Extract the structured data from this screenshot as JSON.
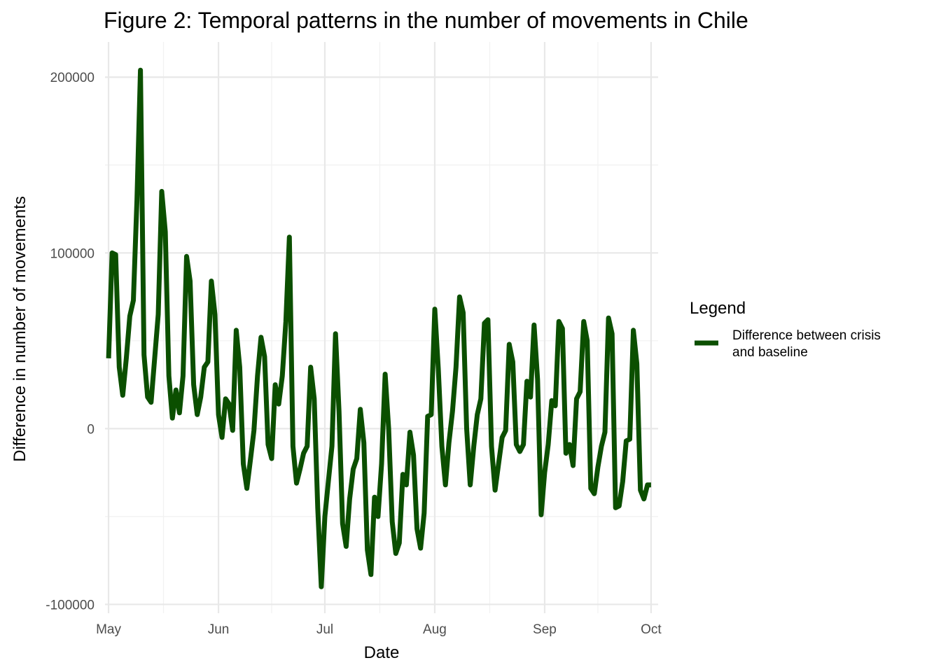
{
  "chart_data": {
    "type": "line",
    "title": "Figure 2: Temporal patterns in the number of movements in Chile",
    "xlabel": "Date",
    "ylabel": "Difference in number of movements",
    "xlim": [
      "2020-04-30",
      "2020-10-03"
    ],
    "ylim": [
      -105000,
      220000
    ],
    "x_ticks": [
      {
        "date": "2020-05-01",
        "label": "May"
      },
      {
        "date": "2020-06-01",
        "label": "Jun"
      },
      {
        "date": "2020-07-01",
        "label": "Jul"
      },
      {
        "date": "2020-08-01",
        "label": "Aug"
      },
      {
        "date": "2020-09-01",
        "label": "Sep"
      },
      {
        "date": "2020-10-01",
        "label": "Oct"
      }
    ],
    "y_ticks": [
      {
        "value": -100000,
        "label": "-100000"
      },
      {
        "value": 0,
        "label": "0"
      },
      {
        "value": 100000,
        "label": "100000"
      },
      {
        "value": 200000,
        "label": "200000"
      }
    ],
    "grid": true,
    "legend": {
      "title": "Legend",
      "position": "right"
    },
    "series": [
      {
        "name": "Difference between crisis\nand baseline",
        "color": "#0b4f00",
        "points": [
          [
            "2020-05-01",
            40000
          ],
          [
            "2020-05-02",
            100000
          ],
          [
            "2020-05-03",
            99000
          ],
          [
            "2020-05-04",
            35000
          ],
          [
            "2020-05-05",
            19000
          ],
          [
            "2020-05-06",
            40000
          ],
          [
            "2020-05-07",
            64000
          ],
          [
            "2020-05-08",
            73000
          ],
          [
            "2020-05-09",
            130000
          ],
          [
            "2020-05-10",
            204000
          ],
          [
            "2020-05-11",
            42000
          ],
          [
            "2020-05-12",
            18000
          ],
          [
            "2020-05-13",
            15000
          ],
          [
            "2020-05-14",
            40000
          ],
          [
            "2020-05-15",
            65000
          ],
          [
            "2020-05-16",
            135000
          ],
          [
            "2020-05-17",
            112000
          ],
          [
            "2020-05-18",
            30000
          ],
          [
            "2020-05-19",
            6000
          ],
          [
            "2020-05-20",
            22000
          ],
          [
            "2020-05-21",
            9000
          ],
          [
            "2020-05-22",
            30000
          ],
          [
            "2020-05-23",
            98000
          ],
          [
            "2020-05-24",
            84000
          ],
          [
            "2020-05-25",
            25000
          ],
          [
            "2020-05-26",
            8000
          ],
          [
            "2020-05-27",
            18000
          ],
          [
            "2020-05-28",
            35000
          ],
          [
            "2020-05-29",
            38000
          ],
          [
            "2020-05-30",
            84000
          ],
          [
            "2020-05-31",
            65000
          ],
          [
            "2020-06-01",
            8000
          ],
          [
            "2020-06-02",
            -5000
          ],
          [
            "2020-06-03",
            17000
          ],
          [
            "2020-06-04",
            14000
          ],
          [
            "2020-06-05",
            -1000
          ],
          [
            "2020-06-06",
            56000
          ],
          [
            "2020-06-07",
            35000
          ],
          [
            "2020-06-08",
            -20000
          ],
          [
            "2020-06-09",
            -34000
          ],
          [
            "2020-06-10",
            -18000
          ],
          [
            "2020-06-11",
            -1000
          ],
          [
            "2020-06-12",
            30000
          ],
          [
            "2020-06-13",
            52000
          ],
          [
            "2020-06-14",
            41000
          ],
          [
            "2020-06-15",
            -9000
          ],
          [
            "2020-06-16",
            -17000
          ],
          [
            "2020-06-17",
            25000
          ],
          [
            "2020-06-18",
            14000
          ],
          [
            "2020-06-19",
            30000
          ],
          [
            "2020-06-20",
            61000
          ],
          [
            "2020-06-21",
            109000
          ],
          [
            "2020-06-22",
            -10000
          ],
          [
            "2020-06-23",
            -31000
          ],
          [
            "2020-06-24",
            -23000
          ],
          [
            "2020-06-25",
            -14000
          ],
          [
            "2020-06-26",
            -10000
          ],
          [
            "2020-06-27",
            35000
          ],
          [
            "2020-06-28",
            17000
          ],
          [
            "2020-06-29",
            -45000
          ],
          [
            "2020-06-30",
            -90000
          ],
          [
            "2020-07-01",
            -50000
          ],
          [
            "2020-07-02",
            -30000
          ],
          [
            "2020-07-03",
            -10000
          ],
          [
            "2020-07-04",
            54000
          ],
          [
            "2020-07-05",
            10000
          ],
          [
            "2020-07-06",
            -54000
          ],
          [
            "2020-07-07",
            -67000
          ],
          [
            "2020-07-08",
            -40000
          ],
          [
            "2020-07-09",
            -23000
          ],
          [
            "2020-07-10",
            -17000
          ],
          [
            "2020-07-11",
            11000
          ],
          [
            "2020-07-12",
            -8000
          ],
          [
            "2020-07-13",
            -69000
          ],
          [
            "2020-07-14",
            -83000
          ],
          [
            "2020-07-15",
            -39000
          ],
          [
            "2020-07-16",
            -50000
          ],
          [
            "2020-07-17",
            -20000
          ],
          [
            "2020-07-18",
            31000
          ],
          [
            "2020-07-19",
            0
          ],
          [
            "2020-07-20",
            -53000
          ],
          [
            "2020-07-21",
            -71000
          ],
          [
            "2020-07-22",
            -65000
          ],
          [
            "2020-07-23",
            -26000
          ],
          [
            "2020-07-24",
            -32000
          ],
          [
            "2020-07-25",
            -2000
          ],
          [
            "2020-07-26",
            -15000
          ],
          [
            "2020-07-27",
            -57000
          ],
          [
            "2020-07-28",
            -68000
          ],
          [
            "2020-07-29",
            -48000
          ],
          [
            "2020-07-30",
            7000
          ],
          [
            "2020-07-31",
            8000
          ],
          [
            "2020-08-01",
            68000
          ],
          [
            "2020-08-02",
            34000
          ],
          [
            "2020-08-03",
            -10000
          ],
          [
            "2020-08-04",
            -32000
          ],
          [
            "2020-08-05",
            -8000
          ],
          [
            "2020-08-06",
            10000
          ],
          [
            "2020-08-07",
            35000
          ],
          [
            "2020-08-08",
            75000
          ],
          [
            "2020-08-09",
            66000
          ],
          [
            "2020-08-10",
            0
          ],
          [
            "2020-08-11",
            -32000
          ],
          [
            "2020-08-12",
            -10000
          ],
          [
            "2020-08-13",
            8000
          ],
          [
            "2020-08-14",
            17000
          ],
          [
            "2020-08-15",
            60000
          ],
          [
            "2020-08-16",
            62000
          ],
          [
            "2020-08-17",
            -10000
          ],
          [
            "2020-08-18",
            -35000
          ],
          [
            "2020-08-19",
            -20000
          ],
          [
            "2020-08-20",
            -5000
          ],
          [
            "2020-08-21",
            -1000
          ],
          [
            "2020-08-22",
            48000
          ],
          [
            "2020-08-23",
            38000
          ],
          [
            "2020-08-24",
            -9000
          ],
          [
            "2020-08-25",
            -13000
          ],
          [
            "2020-08-26",
            -9000
          ],
          [
            "2020-08-27",
            27000
          ],
          [
            "2020-08-28",
            18000
          ],
          [
            "2020-08-29",
            59000
          ],
          [
            "2020-08-30",
            28000
          ],
          [
            "2020-08-31",
            -49000
          ],
          [
            "2020-09-01",
            -25000
          ],
          [
            "2020-09-02",
            -9000
          ],
          [
            "2020-09-03",
            16000
          ],
          [
            "2020-09-04",
            13000
          ],
          [
            "2020-09-05",
            61000
          ],
          [
            "2020-09-06",
            57000
          ],
          [
            "2020-09-07",
            -14000
          ],
          [
            "2020-09-08",
            -9000
          ],
          [
            "2020-09-09",
            -21000
          ],
          [
            "2020-09-10",
            17000
          ],
          [
            "2020-09-11",
            21000
          ],
          [
            "2020-09-12",
            61000
          ],
          [
            "2020-09-13",
            50000
          ],
          [
            "2020-09-14",
            -34000
          ],
          [
            "2020-09-15",
            -37000
          ],
          [
            "2020-09-16",
            -22000
          ],
          [
            "2020-09-17",
            -10000
          ],
          [
            "2020-09-18",
            -2000
          ],
          [
            "2020-09-19",
            63000
          ],
          [
            "2020-09-20",
            54000
          ],
          [
            "2020-09-21",
            -45000
          ],
          [
            "2020-09-22",
            -44000
          ],
          [
            "2020-09-23",
            -30000
          ],
          [
            "2020-09-24",
            -7000
          ],
          [
            "2020-09-25",
            -6000
          ],
          [
            "2020-09-26",
            56000
          ],
          [
            "2020-09-27",
            37000
          ],
          [
            "2020-09-28",
            -35000
          ],
          [
            "2020-09-29",
            -40000
          ],
          [
            "2020-09-30",
            -32000
          ],
          [
            "2020-10-01",
            -32000
          ]
        ]
      }
    ]
  }
}
